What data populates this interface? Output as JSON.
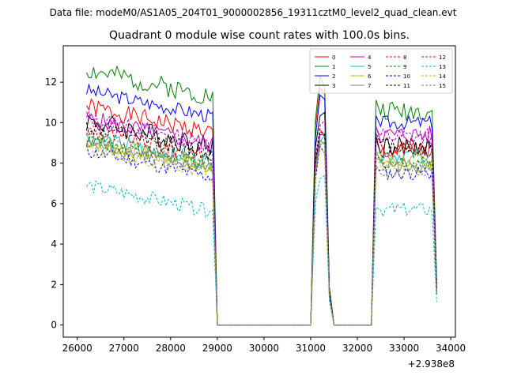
{
  "figure": {
    "suptitle": "Data file: modeM0/AS1A05_204T01_9000002856_19311cztM0_level2_quad_clean.evt"
  },
  "chart_data": {
    "type": "line",
    "title": "Quadrant 0 module wise count rates with 100.0s bins.",
    "xlabel": "",
    "ylabel": "",
    "x_offset_label": "+2.938e8",
    "xlim": [
      25700,
      34100
    ],
    "ylim": [
      -0.6,
      13.8
    ],
    "xticks": [
      26000,
      27000,
      28000,
      29000,
      30000,
      31000,
      32000,
      33000,
      34000
    ],
    "yticks": [
      0,
      2,
      4,
      6,
      8,
      10,
      12
    ],
    "grid": false,
    "legend": {
      "location": "top-right",
      "columns": 4
    },
    "segments": [
      {
        "start": 26200,
        "end": 28900
      },
      {
        "start": 31200,
        "end": 31300
      },
      {
        "start": 32500,
        "end": 33600
      }
    ],
    "series": [
      {
        "name": "0",
        "color": "#ff0000",
        "dash": "solid",
        "level1": 10.2,
        "level2": 12.0,
        "level3": 8.6,
        "amp": 0.45,
        "seed": 1
      },
      {
        "name": "1",
        "color": "#008000",
        "dash": "solid",
        "level1": 12.0,
        "level2": 12.5,
        "level3": 10.6,
        "amp": 0.5,
        "seed": 2
      },
      {
        "name": "2",
        "color": "#0000ff",
        "dash": "solid",
        "level1": 11.0,
        "level2": 11.5,
        "level3": 10.0,
        "amp": 0.35,
        "seed": 3
      },
      {
        "name": "3",
        "color": "#000000",
        "dash": "solid",
        "level1": 9.5,
        "level2": 11.0,
        "level3": 8.8,
        "amp": 0.55,
        "seed": 4
      },
      {
        "name": "4",
        "color": "#bf00bf",
        "dash": "solid",
        "level1": 9.6,
        "level2": 10.0,
        "level3": 9.4,
        "amp": 0.45,
        "seed": 5
      },
      {
        "name": "5",
        "color": "#00bfbf",
        "dash": "solid",
        "level1": 8.7,
        "level2": 9.6,
        "level3": 8.4,
        "amp": 0.4,
        "seed": 6
      },
      {
        "name": "6",
        "color": "#bfbf00",
        "dash": "solid",
        "level1": 8.5,
        "level2": 9.4,
        "level3": 8.1,
        "amp": 0.4,
        "seed": 7
      },
      {
        "name": "7",
        "color": "#808080",
        "dash": "solid",
        "level1": 8.4,
        "level2": 9.5,
        "level3": 7.9,
        "amp": 0.35,
        "seed": 8
      },
      {
        "name": "8",
        "color": "#ff0000",
        "dash": "dashed",
        "level1": 9.0,
        "level2": 10.0,
        "level3": 8.7,
        "amp": 0.4,
        "seed": 9
      },
      {
        "name": "9",
        "color": "#008000",
        "dash": "dashed",
        "level1": 8.6,
        "level2": 9.8,
        "level3": 8.0,
        "amp": 0.4,
        "seed": 10
      },
      {
        "name": "10",
        "color": "#0000ff",
        "dash": "dashed",
        "level1": 8.0,
        "level2": 9.0,
        "level3": 7.5,
        "amp": 0.35,
        "seed": 11
      },
      {
        "name": "11",
        "color": "#000000",
        "dash": "dashed",
        "level1": 9.2,
        "level2": 10.2,
        "level3": 8.9,
        "amp": 0.45,
        "seed": 12
      },
      {
        "name": "12",
        "color": "#bf00bf",
        "dash": "dashed",
        "level1": 9.6,
        "level2": 10.5,
        "level3": 9.3,
        "amp": 0.45,
        "seed": 13
      },
      {
        "name": "13",
        "color": "#00bfbf",
        "dash": "dashed",
        "level1": 6.3,
        "level2": 7.8,
        "level3": 5.7,
        "amp": 0.35,
        "seed": 14
      },
      {
        "name": "14",
        "color": "#bfbf00",
        "dash": "dashed",
        "level1": 8.2,
        "level2": 9.2,
        "level3": 7.9,
        "amp": 0.35,
        "seed": 15
      },
      {
        "name": "15",
        "color": "#808080",
        "dash": "dashed",
        "level1": 8.5,
        "level2": 9.3,
        "level3": 7.6,
        "amp": 0.4,
        "seed": 16
      }
    ]
  }
}
